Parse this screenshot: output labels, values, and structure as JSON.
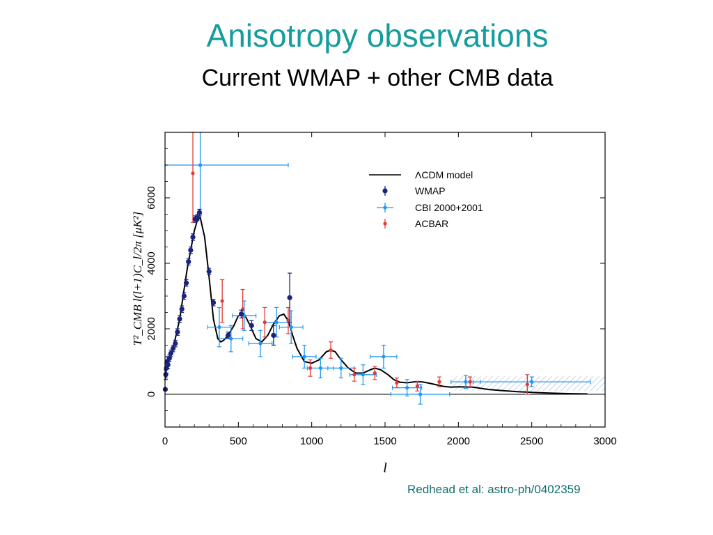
{
  "slide": {
    "title": "Anisotropy observations",
    "subtitle": "Current WMAP + other CMB data",
    "citation": "Redhead et al: astro-ph/0402359"
  },
  "colors": {
    "title": "#169C9C",
    "citation": "#0F6E6E",
    "wmap": "#1A237E",
    "cbi": "#2196F3",
    "acbar": "#E53935",
    "model": "#000000"
  },
  "chart_data": {
    "type": "scatter",
    "xlabel": "l",
    "ylabel": "T²_CMB l(l+1)C_l/2π [μK²]",
    "xlim": [
      0,
      3000
    ],
    "ylim": [
      -1000,
      8000
    ],
    "x_ticks": [
      "0",
      "500",
      "1000",
      "1500",
      "2000",
      "2500",
      "3000"
    ],
    "y_ticks": [
      "0",
      "2000",
      "4000",
      "6000"
    ],
    "legend_position": "top-right",
    "legend": [
      "ΛCDM model",
      "WMAP",
      "CBI 2000+2001",
      "ACBAR"
    ],
    "model": {
      "name": "ΛCDM model",
      "x": [
        2,
        20,
        50,
        100,
        150,
        200,
        220,
        240,
        270,
        300,
        330,
        360,
        380,
        400,
        430,
        470,
        500,
        540,
        580,
        620,
        660,
        700,
        740,
        780,
        810,
        840,
        870,
        900,
        950,
        1000,
        1050,
        1100,
        1130,
        1160,
        1200,
        1250,
        1300,
        1350,
        1400,
        1430,
        1470,
        1520,
        1560,
        1600,
        1650,
        1700,
        1750,
        1800,
        1850,
        1900,
        1950,
        2000,
        2100,
        2200,
        2300,
        2400,
        2500,
        2600,
        2700,
        2800,
        2880
      ],
      "y": [
        800,
        900,
        1300,
        2300,
        3800,
        5000,
        5300,
        5400,
        4800,
        3600,
        2300,
        1700,
        1600,
        1650,
        1800,
        2100,
        2400,
        2450,
        2100,
        1700,
        1600,
        1800,
        2150,
        2400,
        2450,
        2250,
        1800,
        1400,
        1000,
        950,
        1050,
        1300,
        1350,
        1300,
        1050,
        800,
        650,
        650,
        750,
        800,
        750,
        600,
        450,
        370,
        350,
        380,
        380,
        340,
        290,
        240,
        220,
        230,
        220,
        150,
        110,
        80,
        60,
        40,
        25,
        15,
        10
      ]
    },
    "series": [
      {
        "name": "WMAP",
        "points": [
          {
            "x": 2,
            "y": 150,
            "err": 0,
            "xerr": 0
          },
          {
            "x": 5,
            "y": 600,
            "err": 150,
            "xerr": 0
          },
          {
            "x": 10,
            "y": 800,
            "err": 150,
            "xerr": 0
          },
          {
            "x": 15,
            "y": 1000,
            "err": 150,
            "xerr": 0
          },
          {
            "x": 20,
            "y": 900,
            "err": 120,
            "xerr": 0
          },
          {
            "x": 30,
            "y": 1100,
            "err": 100,
            "xerr": 0
          },
          {
            "x": 40,
            "y": 1250,
            "err": 100,
            "xerr": 0
          },
          {
            "x": 55,
            "y": 1400,
            "err": 100,
            "xerr": 0
          },
          {
            "x": 70,
            "y": 1550,
            "err": 100,
            "xerr": 0
          },
          {
            "x": 85,
            "y": 1900,
            "err": 100,
            "xerr": 0
          },
          {
            "x": 100,
            "y": 2300,
            "err": 100,
            "xerr": 0
          },
          {
            "x": 115,
            "y": 2600,
            "err": 100,
            "xerr": 0
          },
          {
            "x": 130,
            "y": 3000,
            "err": 100,
            "xerr": 0
          },
          {
            "x": 145,
            "y": 3400,
            "err": 100,
            "xerr": 0
          },
          {
            "x": 160,
            "y": 4050,
            "err": 100,
            "xerr": 0
          },
          {
            "x": 175,
            "y": 4400,
            "err": 100,
            "xerr": 0
          },
          {
            "x": 190,
            "y": 4800,
            "err": 100,
            "xerr": 0
          },
          {
            "x": 205,
            "y": 5350,
            "err": 100,
            "xerr": 0
          },
          {
            "x": 220,
            "y": 5400,
            "err": 100,
            "xerr": 0
          },
          {
            "x": 235,
            "y": 5550,
            "err": 100,
            "xerr": 0
          },
          {
            "x": 300,
            "y": 3750,
            "err": 100,
            "xerr": 0
          },
          {
            "x": 330,
            "y": 2800,
            "err": 100,
            "xerr": 0
          },
          {
            "x": 430,
            "y": 1800,
            "err": 100,
            "xerr": 0
          },
          {
            "x": 520,
            "y": 2450,
            "err": 120,
            "xerr": 0
          },
          {
            "x": 590,
            "y": 2100,
            "err": 150,
            "xerr": 0
          },
          {
            "x": 740,
            "y": 1800,
            "err": 300,
            "xerr": 0
          },
          {
            "x": 850,
            "y": 2950,
            "err": 750,
            "xerr": 0
          }
        ]
      },
      {
        "name": "CBI 2000+2001",
        "points": [
          {
            "x": 240,
            "y": 7000,
            "err": 1500,
            "xerr": 600
          },
          {
            "x": 370,
            "y": 2050,
            "err": 600,
            "xerr": 80
          },
          {
            "x": 450,
            "y": 1700,
            "err": 400,
            "xerr": 80
          },
          {
            "x": 540,
            "y": 2400,
            "err": 450,
            "xerr": 80
          },
          {
            "x": 650,
            "y": 1550,
            "err": 400,
            "xerr": 80
          },
          {
            "x": 760,
            "y": 2200,
            "err": 450,
            "xerr": 80
          },
          {
            "x": 860,
            "y": 2050,
            "err": 500,
            "xerr": 80
          },
          {
            "x": 950,
            "y": 1150,
            "err": 350,
            "xerr": 80
          },
          {
            "x": 1060,
            "y": 800,
            "err": 300,
            "xerr": 90
          },
          {
            "x": 1200,
            "y": 800,
            "err": 300,
            "xerr": 90
          },
          {
            "x": 1350,
            "y": 600,
            "err": 300,
            "xerr": 90
          },
          {
            "x": 1490,
            "y": 1150,
            "err": 350,
            "xerr": 90
          },
          {
            "x": 1650,
            "y": 200,
            "err": 250,
            "xerr": 100
          },
          {
            "x": 1740,
            "y": 0,
            "err": 300,
            "xerr": 200
          },
          {
            "x": 2050,
            "y": 380,
            "err": 200,
            "xerr": 100
          },
          {
            "x": 2500,
            "y": 380,
            "err": 150,
            "xerr": 400
          }
        ]
      },
      {
        "name": "ACBAR",
        "points": [
          {
            "x": 190,
            "y": 6750,
            "err": 1500,
            "xerr": 0
          },
          {
            "x": 390,
            "y": 2850,
            "err": 650,
            "xerr": 0
          },
          {
            "x": 530,
            "y": 2600,
            "err": 600,
            "xerr": 0
          },
          {
            "x": 680,
            "y": 2200,
            "err": 450,
            "xerr": 0
          },
          {
            "x": 840,
            "y": 2250,
            "err": 400,
            "xerr": 0
          },
          {
            "x": 990,
            "y": 800,
            "err": 250,
            "xerr": 0
          },
          {
            "x": 1130,
            "y": 1350,
            "err": 250,
            "xerr": 0
          },
          {
            "x": 1290,
            "y": 600,
            "err": 200,
            "xerr": 0
          },
          {
            "x": 1430,
            "y": 650,
            "err": 200,
            "xerr": 0
          },
          {
            "x": 1580,
            "y": 350,
            "err": 150,
            "xerr": 0
          },
          {
            "x": 1720,
            "y": 250,
            "err": 150,
            "xerr": 0
          },
          {
            "x": 1870,
            "y": 380,
            "err": 150,
            "xerr": 0
          },
          {
            "x": 2080,
            "y": 380,
            "err": 150,
            "xerr": 0
          },
          {
            "x": 2470,
            "y": 300,
            "err": 300,
            "xerr": 0
          }
        ]
      }
    ],
    "band": {
      "x": [
        1950,
        3000
      ],
      "y": [
        100,
        550
      ]
    }
  }
}
